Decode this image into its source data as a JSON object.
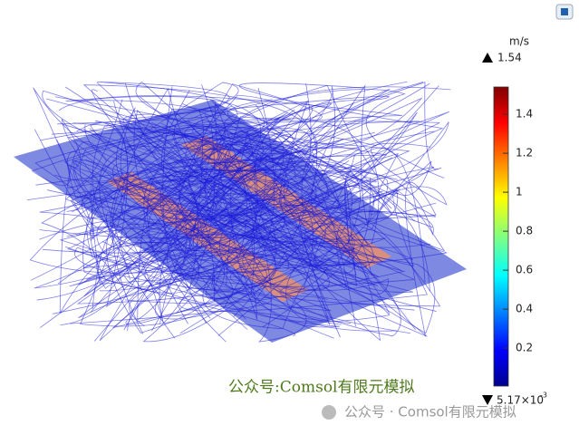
{
  "colorbar": {
    "unit": "m/s",
    "max": 1.54,
    "min": {
      "value": 0.00517,
      "label": "5.17×10",
      "exponent": "-3"
    },
    "ticks": [
      1.4,
      1.2,
      1,
      0.8,
      0.6,
      0.4,
      0.2
    ]
  },
  "watermark": {
    "main": "公众号:Comsol有限元模拟",
    "footer": "公众号 · Comsol有限元模拟"
  }
}
